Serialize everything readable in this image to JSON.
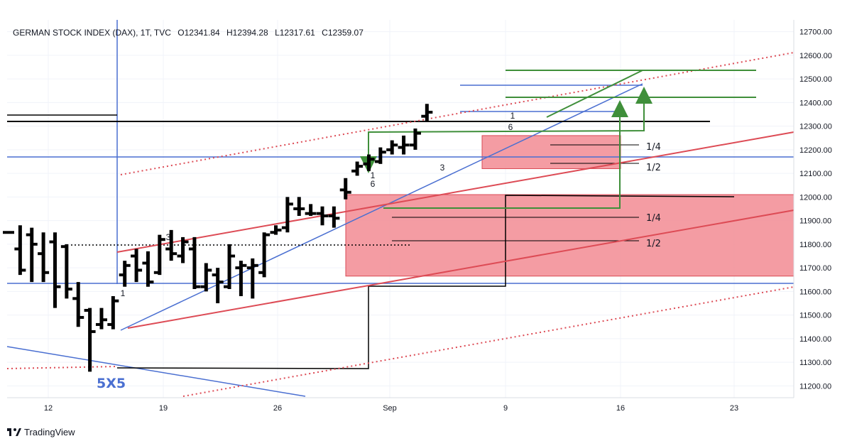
{
  "header": {
    "title": "GERMAN STOCK INDEX (DAX), 1T, TVC",
    "open": "O12341.84",
    "high": "H12394.28",
    "low": "L12317.61",
    "close": "C12359.07"
  },
  "brand": {
    "name": "TradingView"
  },
  "colors": {
    "bars": "#000000",
    "blue": "#4a6fd1",
    "red": "#dd4b55",
    "green": "#3f8f3a",
    "zone_fill": "#f28b93"
  },
  "chart_data": {
    "type": "ohlc",
    "x_ticks": [
      "12",
      "19",
      "26",
      "Sep",
      "9",
      "16",
      "23"
    ],
    "y_ticks": [
      "12700.00",
      "12600.00",
      "12500.00",
      "12400.00",
      "12300.00",
      "12200.00",
      "12100.00",
      "12000.00",
      "11900.00",
      "11800.00",
      "11700.00",
      "11600.00",
      "11500.00",
      "11400.00",
      "11300.00",
      "11200.00"
    ],
    "ylim": [
      11150,
      12750
    ],
    "bars": [
      {
        "o": 11850,
        "h": 11850,
        "l": 11850,
        "c": 11850
      },
      {
        "o": 11780,
        "h": 11880,
        "l": 11670,
        "c": 11690
      },
      {
        "o": 11840,
        "h": 11870,
        "l": 11640,
        "c": 11800
      },
      {
        "o": 11760,
        "h": 11850,
        "l": 11640,
        "c": 11680
      },
      {
        "o": 11810,
        "h": 11850,
        "l": 11530,
        "c": 11620
      },
      {
        "o": 11790,
        "h": 11800,
        "l": 11570,
        "c": 11610
      },
      {
        "o": 11570,
        "h": 11640,
        "l": 11450,
        "c": 11490
      },
      {
        "o": 11520,
        "h": 11530,
        "l": 11260,
        "c": 11430
      },
      {
        "o": 11460,
        "h": 11530,
        "l": 11440,
        "c": 11480
      },
      {
        "o": 11460,
        "h": 11580,
        "l": 11440,
        "c": 11560
      },
      {
        "o": 11670,
        "h": 11730,
        "l": 11620,
        "c": 11710
      },
      {
        "o": 11750,
        "h": 11780,
        "l": 11640,
        "c": 11690
      },
      {
        "o": 11720,
        "h": 11770,
        "l": 11620,
        "c": 11640
      },
      {
        "o": 11680,
        "h": 11840,
        "l": 11670,
        "c": 11820
      },
      {
        "o": 11780,
        "h": 11860,
        "l": 11730,
        "c": 11760
      },
      {
        "o": 11750,
        "h": 11830,
        "l": 11720,
        "c": 11810
      },
      {
        "o": 11780,
        "h": 11830,
        "l": 11610,
        "c": 11620
      },
      {
        "o": 11620,
        "h": 11720,
        "l": 11600,
        "c": 11690
      },
      {
        "o": 11670,
        "h": 11700,
        "l": 11550,
        "c": 11640
      },
      {
        "o": 11620,
        "h": 11800,
        "l": 11610,
        "c": 11750
      },
      {
        "o": 11700,
        "h": 11730,
        "l": 11580,
        "c": 11710
      },
      {
        "o": 11700,
        "h": 11740,
        "l": 11570,
        "c": 11710
      },
      {
        "o": 11680,
        "h": 11850,
        "l": 11660,
        "c": 11840
      },
      {
        "o": 11850,
        "h": 11880,
        "l": 11840,
        "c": 11860
      },
      {
        "o": 11870,
        "h": 12000,
        "l": 11850,
        "c": 11970
      },
      {
        "o": 11950,
        "h": 12000,
        "l": 11920,
        "c": 11950
      },
      {
        "o": 11930,
        "h": 11970,
        "l": 11920,
        "c": 11930
      },
      {
        "o": 11930,
        "h": 11960,
        "l": 11880,
        "c": 11920
      },
      {
        "o": 11920,
        "h": 11960,
        "l": 11870,
        "c": 11910
      },
      {
        "o": 12030,
        "h": 12080,
        "l": 11990,
        "c": 12020
      },
      {
        "o": 12110,
        "h": 12150,
        "l": 12090,
        "c": 12130
      },
      {
        "o": 12140,
        "h": 12180,
        "l": 12110,
        "c": 12160
      },
      {
        "o": 12150,
        "h": 12210,
        "l": 12140,
        "c": 12190
      },
      {
        "o": 12200,
        "h": 12240,
        "l": 12180,
        "c": 12220
      },
      {
        "o": 12210,
        "h": 12260,
        "l": 12180,
        "c": 12220
      },
      {
        "o": 12220,
        "h": 12290,
        "l": 12200,
        "c": 12270
      },
      {
        "o": 12341.84,
        "h": 12394.28,
        "l": 12317.61,
        "c": 12359.07
      }
    ],
    "zones": [
      {
        "y1": 11665,
        "y2": 12010
      },
      {
        "y1": 12120,
        "y2": 12260
      }
    ],
    "annotations": [
      "1",
      "3",
      "1",
      "6",
      "3",
      "6",
      "1",
      "1/4",
      "1/2",
      "1/4",
      "1/2",
      "5X5"
    ]
  }
}
